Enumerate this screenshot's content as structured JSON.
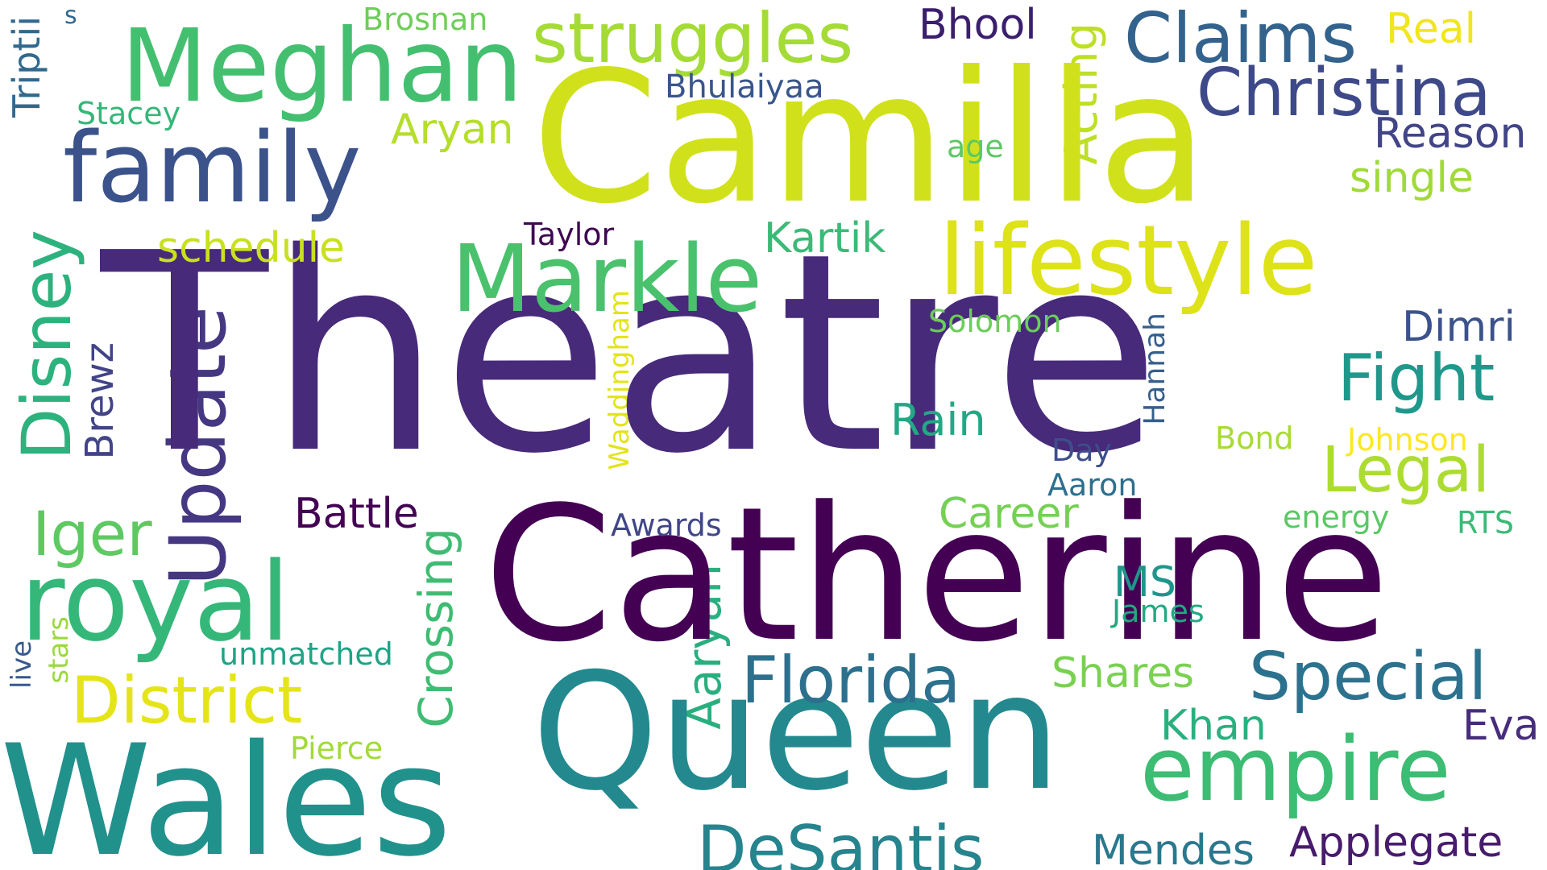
{
  "words": [
    {
      "text": "Theatre",
      "color": "#472a7a"
    },
    {
      "text": "Camilla",
      "color": "#d0e11c"
    },
    {
      "text": "Catherine",
      "color": "#440154"
    },
    {
      "text": "Queen",
      "color": "#23898e"
    },
    {
      "text": "Wales",
      "color": "#21918c"
    },
    {
      "text": "Meghan",
      "color": "#44bf70"
    },
    {
      "text": "family",
      "color": "#3b528b"
    },
    {
      "text": "royal",
      "color": "#35b779"
    },
    {
      "text": "Markle",
      "color": "#4ac16d"
    },
    {
      "text": "lifestyle",
      "color": "#dde318"
    },
    {
      "text": "empire",
      "color": "#3dbc74"
    },
    {
      "text": "struggles",
      "color": "#a5db36"
    },
    {
      "text": "Claims",
      "color": "#33638d"
    },
    {
      "text": "Christina",
      "color": "#3e4989"
    },
    {
      "text": "Special",
      "color": "#2c728e"
    },
    {
      "text": "Florida",
      "color": "#2d708e"
    },
    {
      "text": "DeSantis",
      "color": "#25848e"
    },
    {
      "text": "District",
      "color": "#e5e419"
    },
    {
      "text": "Update",
      "color": "#453781"
    },
    {
      "text": "Disney",
      "color": "#2db27d"
    },
    {
      "text": "Iger",
      "color": "#5ec962"
    },
    {
      "text": "Legal",
      "color": "#addc30"
    },
    {
      "text": "Fight",
      "color": "#1f988b"
    },
    {
      "text": "Crossing",
      "color": "#3fbc73"
    },
    {
      "text": "Aaryan",
      "color": "#29af7f"
    },
    {
      "text": "Applegate",
      "color": "#481b6d"
    },
    {
      "text": "Mendes",
      "color": "#2a788e"
    },
    {
      "text": "Shares",
      "color": "#7ad151"
    },
    {
      "text": "Khan",
      "color": "#2ab07f"
    },
    {
      "text": "Eva",
      "color": "#472d7b"
    },
    {
      "text": "Battle",
      "color": "#440154"
    },
    {
      "text": "Career",
      "color": "#75d054"
    },
    {
      "text": "Rain",
      "color": "#22a884"
    },
    {
      "text": "Kartik",
      "color": "#3aba76"
    },
    {
      "text": "Acting",
      "color": "#bddf26"
    },
    {
      "text": "Aryan",
      "color": "#b5de2b"
    },
    {
      "text": "schedule",
      "color": "#c8e020"
    },
    {
      "text": "Reason",
      "color": "#414487"
    },
    {
      "text": "single",
      "color": "#a0da39"
    },
    {
      "text": "Dimri",
      "color": "#3b528b"
    },
    {
      "text": "Brewz",
      "color": "#414487"
    },
    {
      "text": "Triptii",
      "color": "#31688e"
    },
    {
      "text": "Bhool",
      "color": "#3b1f6d"
    },
    {
      "text": "Bhulaiyaa",
      "color": "#39568c"
    },
    {
      "text": "Real",
      "color": "#f1e51d"
    },
    {
      "text": "Taylor",
      "color": "#3e0751"
    },
    {
      "text": "Solomon",
      "color": "#6ccd5a"
    },
    {
      "text": "Waddingham",
      "color": "#e2e418"
    },
    {
      "text": "Hannah",
      "color": "#355f8d"
    },
    {
      "text": "Bond",
      "color": "#a8db34"
    },
    {
      "text": "Johnson",
      "color": "#fde725"
    },
    {
      "text": "Day",
      "color": "#3d4e8a"
    },
    {
      "text": "Aaron",
      "color": "#2e6f8e"
    },
    {
      "text": "energy",
      "color": "#5ac864"
    },
    {
      "text": "RTS",
      "color": "#3aba76"
    },
    {
      "text": "Awards",
      "color": "#404688"
    },
    {
      "text": "MS",
      "color": "#1f958b"
    },
    {
      "text": "James",
      "color": "#23a983"
    },
    {
      "text": "unmatched",
      "color": "#20a386"
    },
    {
      "text": "Pierce",
      "color": "#a2da37"
    },
    {
      "text": "stars",
      "color": "#9bd93c"
    },
    {
      "text": "live",
      "color": "#38598c"
    },
    {
      "text": "Stacey",
      "color": "#35b779"
    },
    {
      "text": "Brosnan",
      "color": "#6ece58"
    },
    {
      "text": "age",
      "color": "#5cc863"
    },
    {
      "text": "s",
      "color": "#31688e"
    }
  ]
}
